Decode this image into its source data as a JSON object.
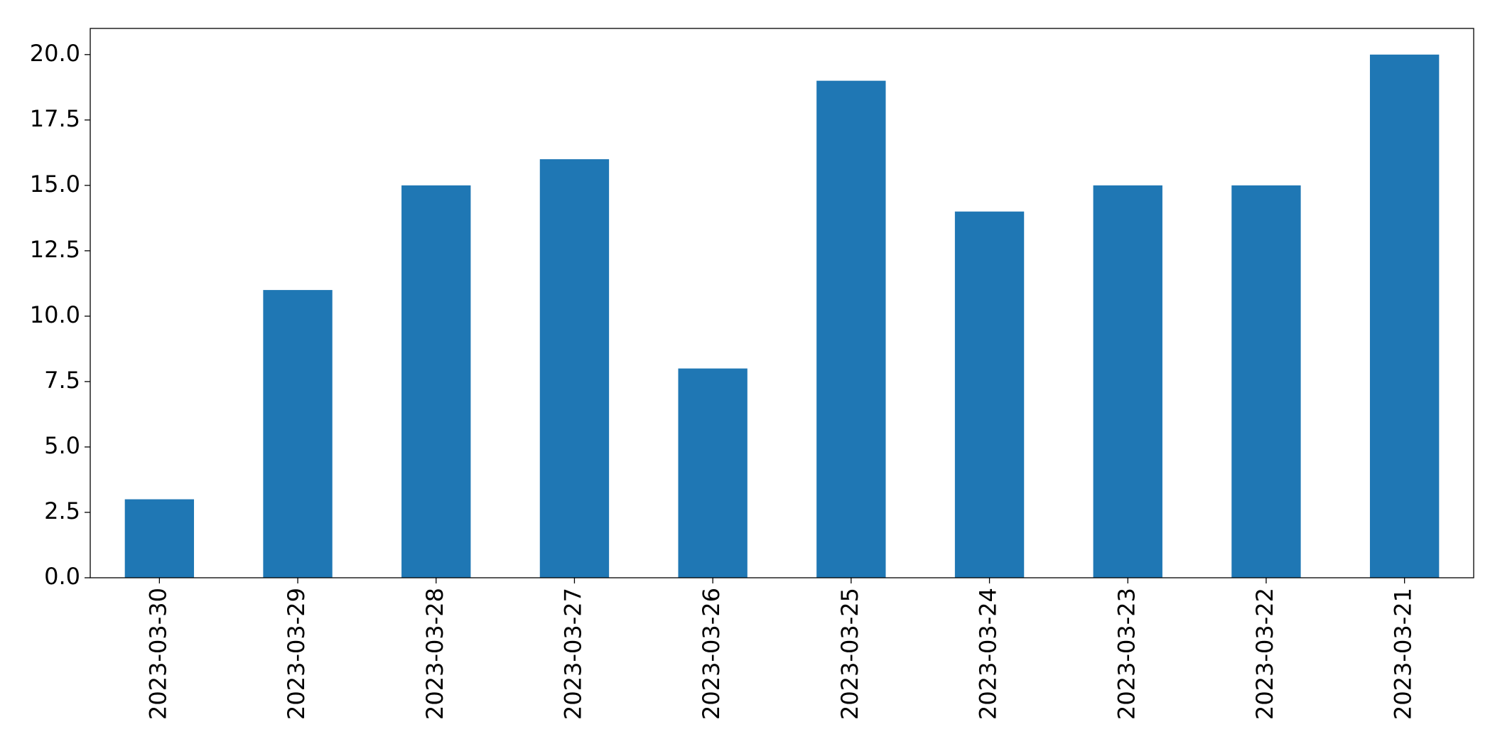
{
  "chart_data": {
    "type": "bar",
    "categories": [
      "2023-03-30",
      "2023-03-29",
      "2023-03-28",
      "2023-03-27",
      "2023-03-26",
      "2023-03-25",
      "2023-03-24",
      "2023-03-23",
      "2023-03-22",
      "2023-03-21"
    ],
    "values": [
      3,
      11,
      15,
      16,
      8,
      19,
      14,
      15,
      15,
      20
    ],
    "color": "#1f77b4",
    "ylim": [
      0,
      21
    ],
    "yticks": [
      {
        "value": 0,
        "label": "0.0"
      },
      2.5,
      {
        "value": 5,
        "label": "5.0"
      },
      7.5,
      {
        "value": 10,
        "label": "10.0"
      },
      12.5,
      {
        "value": 15,
        "label": "15.0"
      },
      17.5,
      {
        "value": 20,
        "label": "20.0"
      }
    ],
    "grid": false
  }
}
